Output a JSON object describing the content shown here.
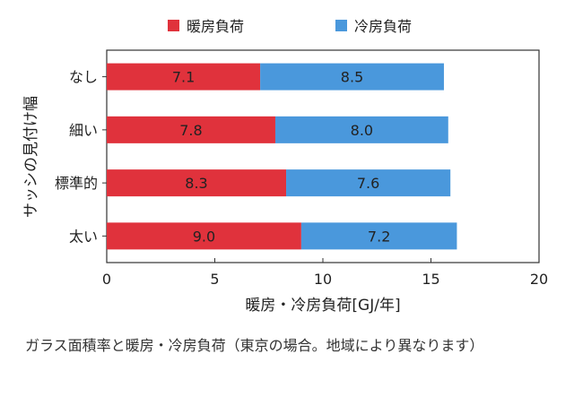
{
  "chart_data": {
    "type": "bar",
    "orientation": "horizontal",
    "stacked": true,
    "categories": [
      "なし",
      "細い",
      "標準的",
      "太い"
    ],
    "series": [
      {
        "name": "暖房負荷",
        "color": "#e0323c",
        "values": [
          7.1,
          7.8,
          8.3,
          9.0
        ]
      },
      {
        "name": "冷房負荷",
        "color": "#4a98dc",
        "values": [
          8.5,
          8.0,
          7.6,
          7.2
        ]
      }
    ],
    "data_labels": {
      "heating": [
        "7.1",
        "7.8",
        "8.3",
        "9.0"
      ],
      "cooling": [
        "8.5",
        "8.0",
        "7.6",
        "7.2"
      ]
    },
    "xlabel": "暖房・冷房負荷[GJ/年]",
    "ylabel": "サッシの見付け幅",
    "xlim": [
      0,
      20
    ],
    "xticks": [
      "0",
      "5",
      "10",
      "15",
      "20"
    ],
    "legend_position": "top",
    "grid": false
  },
  "caption": "ガラス面積率と暖房・冷房負荷（東京の場合。地域により異なります）"
}
